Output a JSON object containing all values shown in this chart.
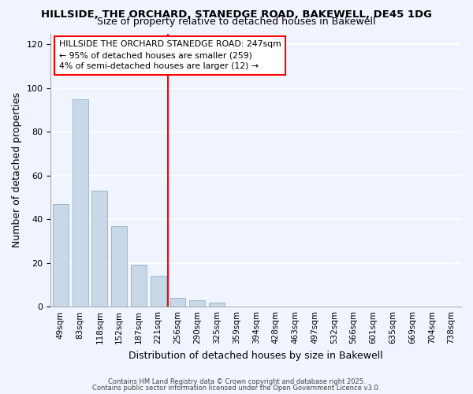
{
  "title": "HILLSIDE, THE ORCHARD, STANEDGE ROAD, BAKEWELL, DE45 1DG",
  "subtitle": "Size of property relative to detached houses in Bakewell",
  "xlabel": "Distribution of detached houses by size in Bakewell",
  "ylabel": "Number of detached properties",
  "bar_color": "#c8d8e8",
  "bar_edge_color": "#a0b8cc",
  "background_color": "#f0f4ff",
  "grid_color": "white",
  "bin_labels": [
    "49sqm",
    "83sqm",
    "118sqm",
    "152sqm",
    "187sqm",
    "221sqm",
    "256sqm",
    "290sqm",
    "325sqm",
    "359sqm",
    "394sqm",
    "428sqm",
    "463sqm",
    "497sqm",
    "532sqm",
    "566sqm",
    "601sqm",
    "635sqm",
    "669sqm",
    "704sqm",
    "738sqm"
  ],
  "values": [
    47,
    95,
    53,
    37,
    19,
    14,
    4,
    3,
    2,
    0,
    0,
    0,
    0,
    0,
    0,
    0,
    0,
    0,
    0,
    0,
    0
  ],
  "ylim": [
    0,
    125
  ],
  "yticks": [
    0,
    20,
    40,
    60,
    80,
    100,
    120
  ],
  "vline_x": 5.5,
  "annotation_lines": [
    "HILLSIDE THE ORCHARD STANEDGE ROAD: 247sqm",
    "← 95% of detached houses are smaller (259)",
    "4% of semi-detached houses are larger (12) →"
  ],
  "footer1": "Contains HM Land Registry data © Crown copyright and database right 2025.",
  "footer2": "Contains public sector information licensed under the Open Government Licence v3.0."
}
